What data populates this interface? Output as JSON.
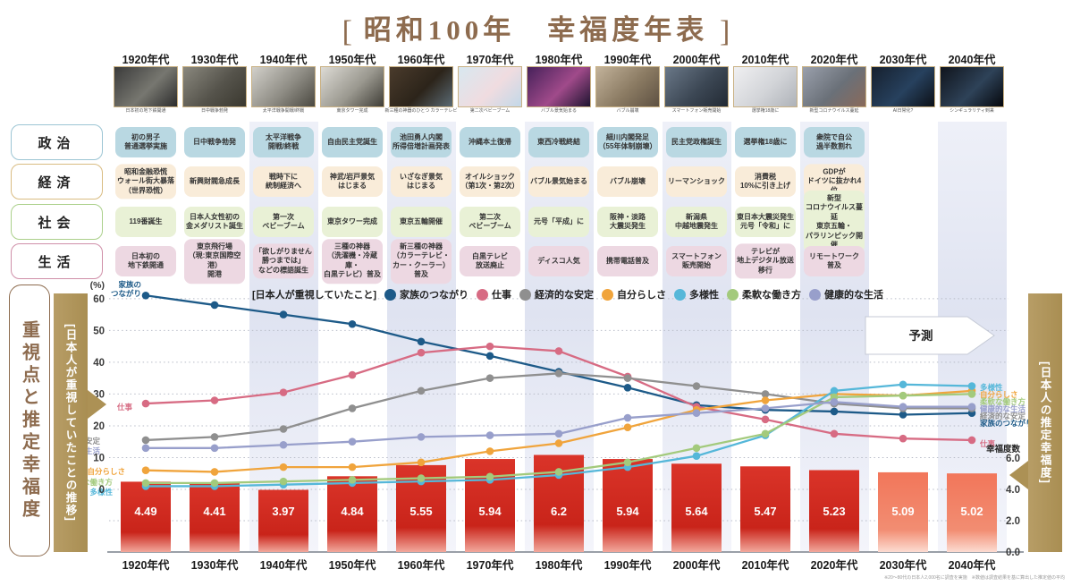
{
  "title": {
    "bracket_left": "[",
    "main": "昭和100年　幸福度年表",
    "bracket_right": "]"
  },
  "decades": [
    "1920年代",
    "1930年代",
    "1940年代",
    "1950年代",
    "1960年代",
    "1970年代",
    "1980年代",
    "1990年代",
    "2000年代",
    "2010年代",
    "2020年代",
    "2030年代",
    "2040年代"
  ],
  "photos": [
    {
      "caption": "日本初の地下鉄開通",
      "colors": [
        "#3a3a3a",
        "#777770",
        "#2c2c2c"
      ]
    },
    {
      "caption": "日中戦争勃発",
      "colors": [
        "#8a887e",
        "#55534b",
        "#3a382f"
      ]
    },
    {
      "caption": "太平洋戦争開戦/終戦",
      "colors": [
        "#d2d0ca",
        "#8e8c84",
        "#4a4840"
      ]
    },
    {
      "caption": "東京タワー完成",
      "colors": [
        "#dddbd5",
        "#9a988f",
        "#3f3d36"
      ]
    },
    {
      "caption": "新三種の神器のひとつ カラーテレビ",
      "colors": [
        "#4a3b2c",
        "#2c241a",
        "#5a6a74"
      ]
    },
    {
      "caption": "第二次ベビーブーム",
      "colors": [
        "#d8e8f0",
        "#f0dce0",
        "#c2d8e8"
      ]
    },
    {
      "caption": "バブル景気始まる",
      "colors": [
        "#46215a",
        "#a04a8a",
        "#1e1430"
      ]
    },
    {
      "caption": "バブル崩壊",
      "colors": [
        "#c2b29a",
        "#8a7a62",
        "#5e5142"
      ]
    },
    {
      "caption": "スマートフォン販売開始",
      "colors": [
        "#6a7888",
        "#3c4754",
        "#222a34"
      ]
    },
    {
      "caption": "選挙権18歳に",
      "colors": [
        "#f0f0f2",
        "#d2d4d8",
        "#aeb2b8"
      ]
    },
    {
      "caption": "新型コロナウイルス蔓延",
      "colors": [
        "#9aa0ac",
        "#6a7078",
        "#8a6a5a"
      ]
    },
    {
      "caption": "AI日常化?",
      "colors": [
        "#16202e",
        "#27415e",
        "#0c1016"
      ]
    },
    {
      "caption": "シンギュラリティ到来",
      "colors": [
        "#10141c",
        "#2e4258",
        "#05070c"
      ]
    }
  ],
  "categories": [
    {
      "label": "政治",
      "fill": "#b9d8e2",
      "border": "#9cc5d4",
      "events": [
        "初の男子\n普通選挙実施",
        "日中戦争勃発",
        "太平洋戦争\n開戦/終戦",
        "自由民主党誕生",
        "池田勇人内閣\n所得倍増計画発表",
        "沖縄本土復帰",
        "東西冷戦終結",
        "細川内閣発足\n（55年体制崩壊）",
        "民主党政権誕生",
        "選挙権18歳に",
        "衆院で自公\n過半数割れ"
      ]
    },
    {
      "label": "経済",
      "fill": "#f9ecd9",
      "border": "#d9bc82",
      "events": [
        "昭和金融恐慌\nウォール街大暴落\n（世界恐慌）",
        "新興財閥急成長",
        "戦時下に\n統制経済へ",
        "神武/岩戸景気\nはじまる",
        "いざなぎ景気\nはじまる",
        "オイルショック\n（第1次・第2次）",
        "バブル景気始まる",
        "バブル崩壊",
        "リーマンショック",
        "消費税\n10%に引き上げ",
        "GDPが\nドイツに抜かれ4位"
      ]
    },
    {
      "label": "社会",
      "fill": "#e9f1d6",
      "border": "#abd08b",
      "events": [
        "119番誕生",
        "日本人女性初の\n金メダリスト誕生",
        "第一次\nベビーブーム",
        "東京タワー完成",
        "東京五輪開催",
        "第二次\nベビーブーム",
        "元号「平成」に",
        "阪神・淡路\n大震災発生",
        "新潟県\n中越地震発生",
        "東日本大震災発生\n元号「令和」に",
        "新型\nコロナウイルス蔓延\n東京五輪・\nパラリンピック開催"
      ]
    },
    {
      "label": "生活",
      "fill": "#edd8e2",
      "border": "#cf8fa8",
      "events": [
        "日本初の\n地下鉄開通",
        "東京飛行場\n（現:東京国際空港）\n開港",
        "「欲しがりません\n勝つまでは」\nなどの標語誕生",
        "三種の神器\n（洗濯機・冷蔵庫・\n白黒テレビ）普及",
        "新三種の神器\n（カラーテレビ・\nカー・クーラー）普及",
        "白黒テレビ\n放送廃止",
        "ディスコ人気",
        "携帯電話普及",
        "スマートフォン\n販売開始",
        "テレビが\n地上デジタル放送\n移行",
        "リモートワーク\n普及"
      ]
    }
  ],
  "chart_data": {
    "type": "line+bar",
    "x_categories": [
      "1920年代",
      "1930年代",
      "1940年代",
      "1950年代",
      "1960年代",
      "1970年代",
      "1980年代",
      "1990年代",
      "2000年代",
      "2010年代",
      "2020年代",
      "2030年代",
      "2040年代"
    ],
    "legend_title": "[日本人が重視していたこと]",
    "left_axis": {
      "unit": "(%)",
      "ticks": [
        60,
        50,
        40,
        30,
        20,
        10,
        0
      ],
      "max": 60,
      "grid": "dotted"
    },
    "right_axis": {
      "title": "幸福度数",
      "ticks": [
        "6.0",
        "4.0",
        "2.0",
        "0.0"
      ],
      "max": 6.0
    },
    "series": [
      {
        "name": "家族のつながり",
        "color": "#1d5a88",
        "values": [
          61,
          58,
          55,
          52,
          46.5,
          42,
          37,
          32,
          26.5,
          25,
          24.5,
          23.5,
          24
        ]
      },
      {
        "name": "仕事",
        "color": "#d76b83",
        "values": [
          27,
          28,
          30.5,
          36,
          43,
          45,
          43.5,
          35.5,
          26,
          22,
          17.5,
          16,
          15.5
        ]
      },
      {
        "name": "経済的な安定",
        "color": "#8f8f8f",
        "values": [
          15.5,
          16.5,
          19,
          25.5,
          31,
          35,
          36.5,
          35,
          32.5,
          30,
          27,
          25.5,
          25.5
        ]
      },
      {
        "name": "自分らしさ",
        "color": "#f0a43c",
        "values": [
          6,
          5.5,
          7,
          7,
          8.5,
          12,
          14.5,
          19.5,
          25,
          28,
          30,
          29.5,
          31
        ]
      },
      {
        "name": "多様性",
        "color": "#55b7d9",
        "values": [
          1,
          1,
          1.5,
          2,
          2.5,
          3,
          4.5,
          7,
          10.5,
          17,
          31,
          33,
          32.5
        ]
      },
      {
        "name": "柔軟な働き方",
        "color": "#a3ca7c",
        "values": [
          2,
          2,
          2.5,
          3,
          3.5,
          4,
          5.5,
          8.5,
          13,
          17.5,
          29,
          29.5,
          30
        ]
      },
      {
        "name": "健康的な生活",
        "color": "#989fcb",
        "values": [
          13,
          13,
          14,
          15,
          16.5,
          17,
          17.5,
          22.5,
          24,
          25.5,
          27.5,
          26,
          26
        ]
      }
    ],
    "bars": {
      "name": "推定幸福度",
      "values": [
        4.49,
        4.41,
        3.97,
        4.84,
        5.55,
        5.94,
        6.2,
        5.94,
        5.64,
        5.47,
        5.23,
        5.09,
        5.02
      ],
      "color_top": "#da3429",
      "color_mid": "#c9241a",
      "color_fade": "#f2a89c",
      "forecast_top": "#f2765a",
      "forecast_mid": "#f28d72",
      "forecast_fade": "#fcdcd2",
      "forecast_from_index": 11
    },
    "forecast_label": "予測"
  },
  "left_panel": {
    "box_label": "重視点と推定幸福度",
    "ribbon_label": "[日本人が重視していたことの推移]"
  },
  "right_panel": {
    "ribbon_label": "[日本人の推定幸福度]"
  },
  "footnote": "※20〜80代の日本人2,000名に調査を実施　※数値は調査結果を基に算出した推定値の平均"
}
